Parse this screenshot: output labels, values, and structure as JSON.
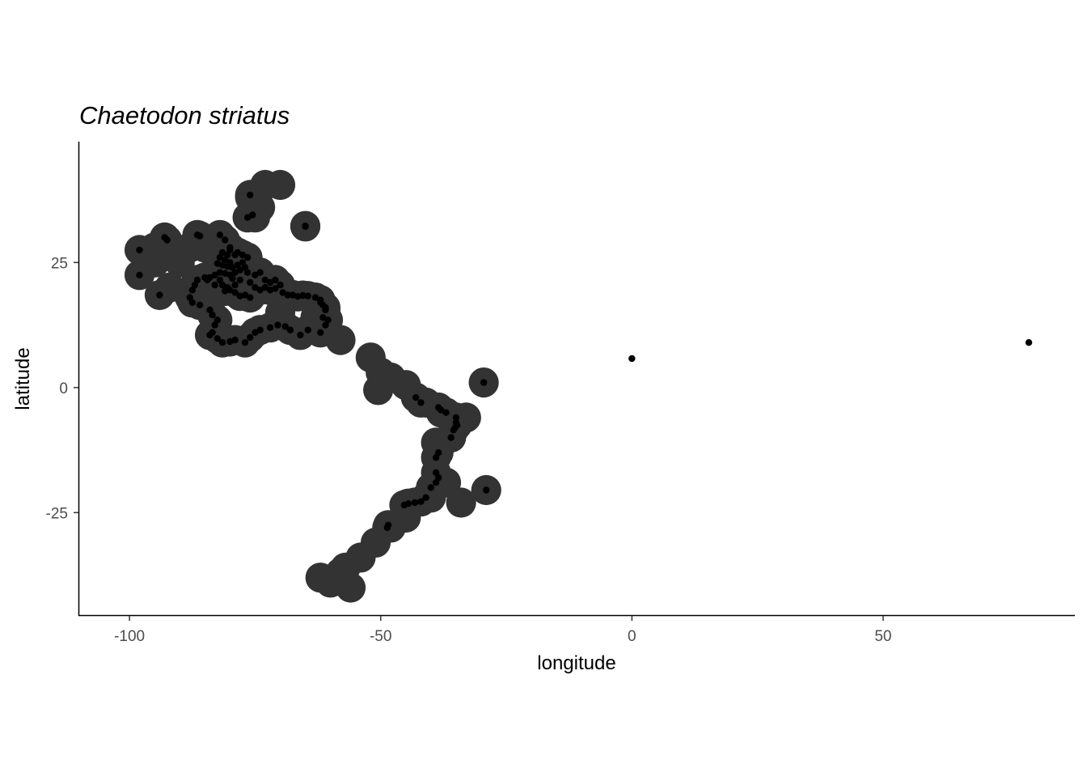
{
  "chart_data": {
    "type": "scatter",
    "title": "Chaetodon striatus",
    "xlabel": "longitude",
    "ylabel": "latitude",
    "xlim": [
      -110,
      88
    ],
    "ylim": [
      -45.5,
      49
    ],
    "x_ticks": [
      -100,
      -50,
      0,
      50
    ],
    "x_tick_labels": [
      "-100",
      "-50",
      "0",
      "50"
    ],
    "y_ticks": [
      -25,
      0,
      25
    ],
    "y_tick_labels": [
      "-25",
      "0",
      "25"
    ],
    "grid": false,
    "legend": "none",
    "range_buffer_color": "#333333",
    "point_color": "#000000",
    "range_buffer_radius": 3,
    "range_buffer_extra_points": [
      [
        -95,
        25
      ],
      [
        -90,
        25
      ],
      [
        -92,
        20
      ],
      [
        -95,
        28
      ],
      [
        -88,
        28
      ],
      [
        -85,
        28
      ],
      [
        -76,
        38
      ],
      [
        -74,
        36
      ],
      [
        -73,
        40.5
      ],
      [
        -70,
        40.5
      ],
      [
        -75,
        34
      ],
      [
        -70,
        15
      ],
      [
        -63,
        14
      ],
      [
        -58,
        9.5
      ],
      [
        -52,
        6
      ],
      [
        -50,
        3
      ],
      [
        -48,
        2
      ],
      [
        -50.5,
        -0.5
      ],
      [
        -45,
        0.5
      ],
      [
        -41,
        -3
      ],
      [
        -38,
        -5
      ],
      [
        -33,
        -6
      ],
      [
        -39,
        -11
      ],
      [
        -37,
        -19
      ],
      [
        -34,
        -23
      ],
      [
        -40,
        -22
      ],
      [
        -45,
        -26
      ],
      [
        -48,
        -28
      ],
      [
        -51,
        -31
      ],
      [
        -54,
        -34
      ],
      [
        -57,
        -36
      ],
      [
        -58,
        -37
      ],
      [
        -62,
        -38
      ],
      [
        -60,
        -39
      ],
      [
        -56,
        -40
      ]
    ],
    "occurrences": [
      [
        -98,
        27.5
      ],
      [
        -98,
        22.5
      ],
      [
        -94,
        18.5
      ],
      [
        -93,
        30
      ],
      [
        -92.5,
        29.5
      ],
      [
        -86.5,
        30.5
      ],
      [
        -86,
        30.3
      ],
      [
        -82,
        30.5
      ],
      [
        -81,
        29.5
      ],
      [
        -80,
        28
      ],
      [
        -81.5,
        27
      ],
      [
        -82,
        26
      ],
      [
        -81,
        25.5
      ],
      [
        -80,
        25
      ],
      [
        -82.5,
        24.8
      ],
      [
        -81.5,
        24.5
      ],
      [
        -80.5,
        24.2
      ],
      [
        -79.5,
        24
      ],
      [
        -78.5,
        24.5
      ],
      [
        -77.5,
        25
      ],
      [
        -77,
        24
      ],
      [
        -78,
        23.5
      ],
      [
        -79,
        23
      ],
      [
        -80,
        22.5
      ],
      [
        -81,
        22.8
      ],
      [
        -82,
        23
      ],
      [
        -83,
        22.5
      ],
      [
        -84,
        22
      ],
      [
        -85,
        22
      ],
      [
        -84.5,
        21.5
      ],
      [
        -86.5,
        21.5
      ],
      [
        -87,
        20.5
      ],
      [
        -87.5,
        19.5
      ],
      [
        -88,
        18
      ],
      [
        -87.5,
        17
      ],
      [
        -86,
        16.5
      ],
      [
        -84,
        15.5
      ],
      [
        -83.5,
        14.5
      ],
      [
        -82.5,
        13.5
      ],
      [
        -83,
        12.5
      ],
      [
        -83.5,
        11
      ],
      [
        -84,
        10.5
      ],
      [
        -82.5,
        9.8
      ],
      [
        -81.5,
        9
      ],
      [
        -80,
        9.2
      ],
      [
        -79,
        9.5
      ],
      [
        -77,
        9
      ],
      [
        -76,
        10
      ],
      [
        -75,
        11
      ],
      [
        -74,
        11.5
      ],
      [
        -72,
        12
      ],
      [
        -70.5,
        12.5
      ],
      [
        -69,
        12.2
      ],
      [
        -68,
        11.5
      ],
      [
        -66,
        10.5
      ],
      [
        -64.5,
        11.5
      ],
      [
        -62,
        11
      ],
      [
        -61,
        12.5
      ],
      [
        -61.5,
        14
      ],
      [
        -61,
        15.5
      ],
      [
        -61.5,
        16.5
      ],
      [
        -62,
        17.5
      ],
      [
        -63,
        18
      ],
      [
        -64.5,
        18.3
      ],
      [
        -65.5,
        18.4
      ],
      [
        -66.5,
        18.2
      ],
      [
        -67.5,
        18.5
      ],
      [
        -68.5,
        18.5
      ],
      [
        -69.5,
        19
      ],
      [
        -71,
        19.8
      ],
      [
        -72,
        19.5
      ],
      [
        -73,
        20
      ],
      [
        -74,
        19.5
      ],
      [
        -75,
        20
      ],
      [
        -76,
        18
      ],
      [
        -77,
        18.5
      ],
      [
        -78,
        18.3
      ],
      [
        -79,
        19
      ],
      [
        -80,
        19.5
      ],
      [
        -81,
        19.3
      ],
      [
        -76,
        21
      ],
      [
        -75,
        22.5
      ],
      [
        -76.5,
        23
      ],
      [
        -74,
        23
      ],
      [
        -73,
        21.5
      ],
      [
        -72,
        21
      ],
      [
        -71,
        21.5
      ],
      [
        -70,
        20.5
      ],
      [
        -78,
        21.5
      ],
      [
        -79.5,
        21.8
      ],
      [
        -82,
        21.5
      ],
      [
        -83,
        20.5
      ],
      [
        -81.5,
        20.5
      ],
      [
        -80.5,
        20
      ],
      [
        -79,
        20.5
      ],
      [
        -77.5,
        26.5
      ],
      [
        -76.5,
        26
      ],
      [
        -79,
        26.5
      ],
      [
        -78.5,
        27
      ],
      [
        -80.5,
        26.5
      ],
      [
        -80,
        27.5
      ],
      [
        -76,
        38.5
      ],
      [
        -75.5,
        34.5
      ],
      [
        -76.5,
        34
      ],
      [
        -65,
        32.3
      ],
      [
        -62,
        17
      ],
      [
        -61,
        16
      ],
      [
        -60.5,
        13.5
      ],
      [
        -43,
        -2
      ],
      [
        -42,
        -3
      ],
      [
        -38.5,
        -4
      ],
      [
        -38,
        -4.5
      ],
      [
        -37,
        -5
      ],
      [
        -35,
        -6
      ],
      [
        -35,
        -7
      ],
      [
        -34.8,
        -7.5
      ],
      [
        -35.2,
        -8
      ],
      [
        -35.5,
        -8.5
      ],
      [
        -36,
        -10
      ],
      [
        -38.5,
        -13
      ],
      [
        -39,
        -14
      ],
      [
        -39,
        -17
      ],
      [
        -38.5,
        -18
      ],
      [
        -39,
        -19
      ],
      [
        -40,
        -20
      ],
      [
        -41,
        -22
      ],
      [
        -42,
        -22.8
      ],
      [
        -43.2,
        -23
      ],
      [
        -44.5,
        -23.2
      ],
      [
        -45.3,
        -23.5
      ],
      [
        -48.5,
        -27.5
      ],
      [
        -48.7,
        -28
      ],
      [
        -29.5,
        1
      ],
      [
        -29,
        -20.5
      ],
      [
        -65,
        32.2
      ],
      [
        0,
        5.8
      ],
      [
        79,
        9
      ]
    ]
  }
}
